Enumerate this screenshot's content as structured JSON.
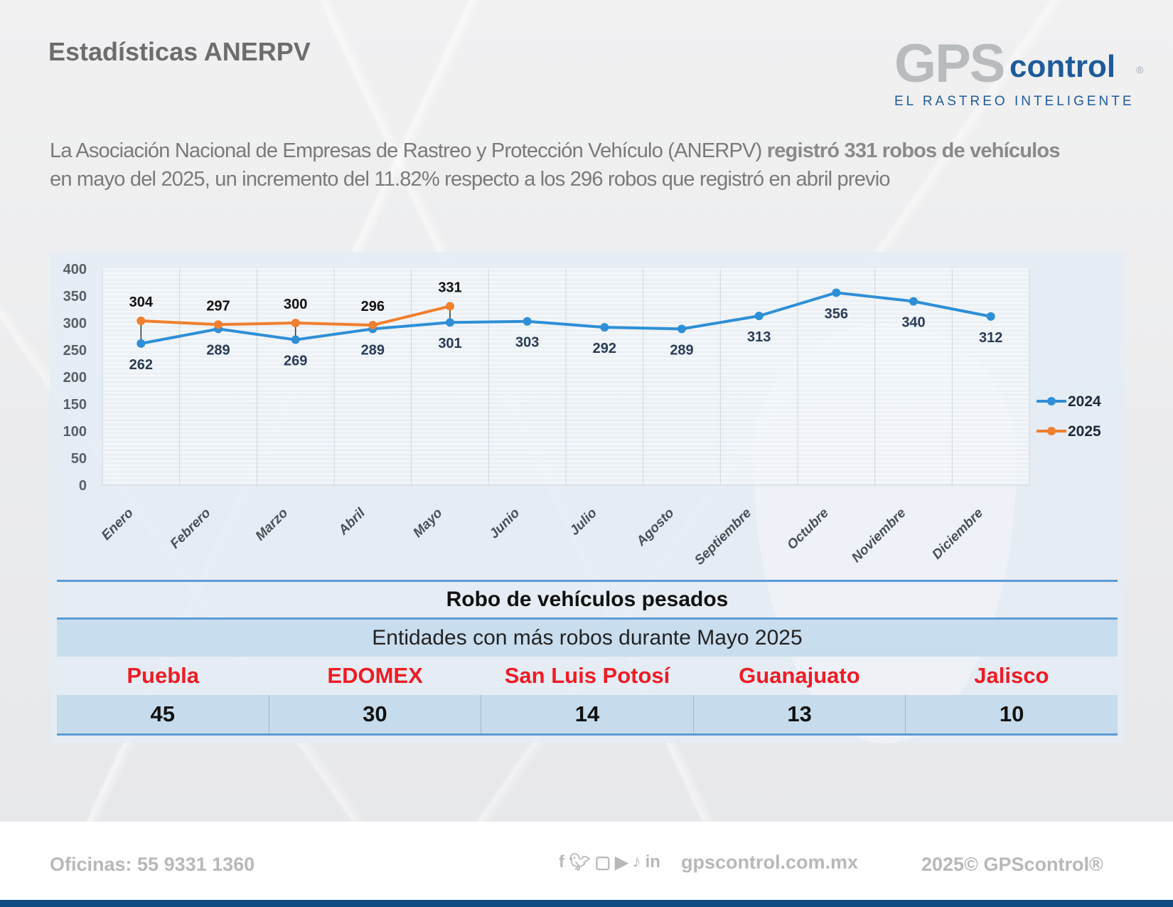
{
  "header": {
    "title": "Estadísticas ANERPV",
    "logo": {
      "gps": "GPS",
      "control": "control",
      "registered": "®",
      "tagline": "EL RASTREO INTELIGENTE"
    }
  },
  "intro": {
    "part1": "La Asociación Nacional de Empresas de Rastreo y Protección Vehículo (ANERPV) ",
    "bold": "registró 331 robos de vehículos",
    "part2": "en mayo del 2025, un incremento del 11.82% respecto a los 296 robos que registró en abril previo"
  },
  "chart_data": {
    "type": "line",
    "title": "",
    "xlabel": "",
    "ylabel": "",
    "categories": [
      "Enero",
      "Febrero",
      "Marzo",
      "Abril",
      "Mayo",
      "Junio",
      "Julio",
      "Agosto",
      "Septiembre",
      "Octubre",
      "Noviembre",
      "Diciembre"
    ],
    "ylim": [
      0,
      400
    ],
    "yticks": [
      0,
      50,
      100,
      150,
      200,
      250,
      300,
      350,
      400
    ],
    "grid": true,
    "legend": "right",
    "series": [
      {
        "name": "2024",
        "color": "#2e8fd6",
        "values": [
          262,
          289,
          269,
          289,
          301,
          303,
          292,
          289,
          313,
          356,
          340,
          312
        ]
      },
      {
        "name": "2025",
        "color": "#f07f2e",
        "values": [
          304,
          297,
          300,
          296,
          331,
          null,
          null,
          null,
          null,
          null,
          null,
          null
        ]
      }
    ]
  },
  "table": {
    "title": "Robo de vehículos pesados",
    "subtitle": "Entidades con más robos durante Mayo 2025",
    "entities": [
      {
        "name": "Puebla",
        "value": "45"
      },
      {
        "name": "EDOMEX",
        "value": "30"
      },
      {
        "name": "San Luis Potosí",
        "value": "14"
      },
      {
        "name": "Guanajuato",
        "value": "13"
      },
      {
        "name": "Jalisco",
        "value": "10"
      }
    ]
  },
  "footer": {
    "offices": "Oficinas: 55 9331 1360",
    "social_icons": [
      "facebook-icon",
      "twitter-icon",
      "instagram-icon",
      "youtube-icon",
      "tiktok-icon",
      "linkedin-icon"
    ],
    "url": "gpscontrol.com.mx",
    "copyright": "2025© GPScontrol®"
  }
}
